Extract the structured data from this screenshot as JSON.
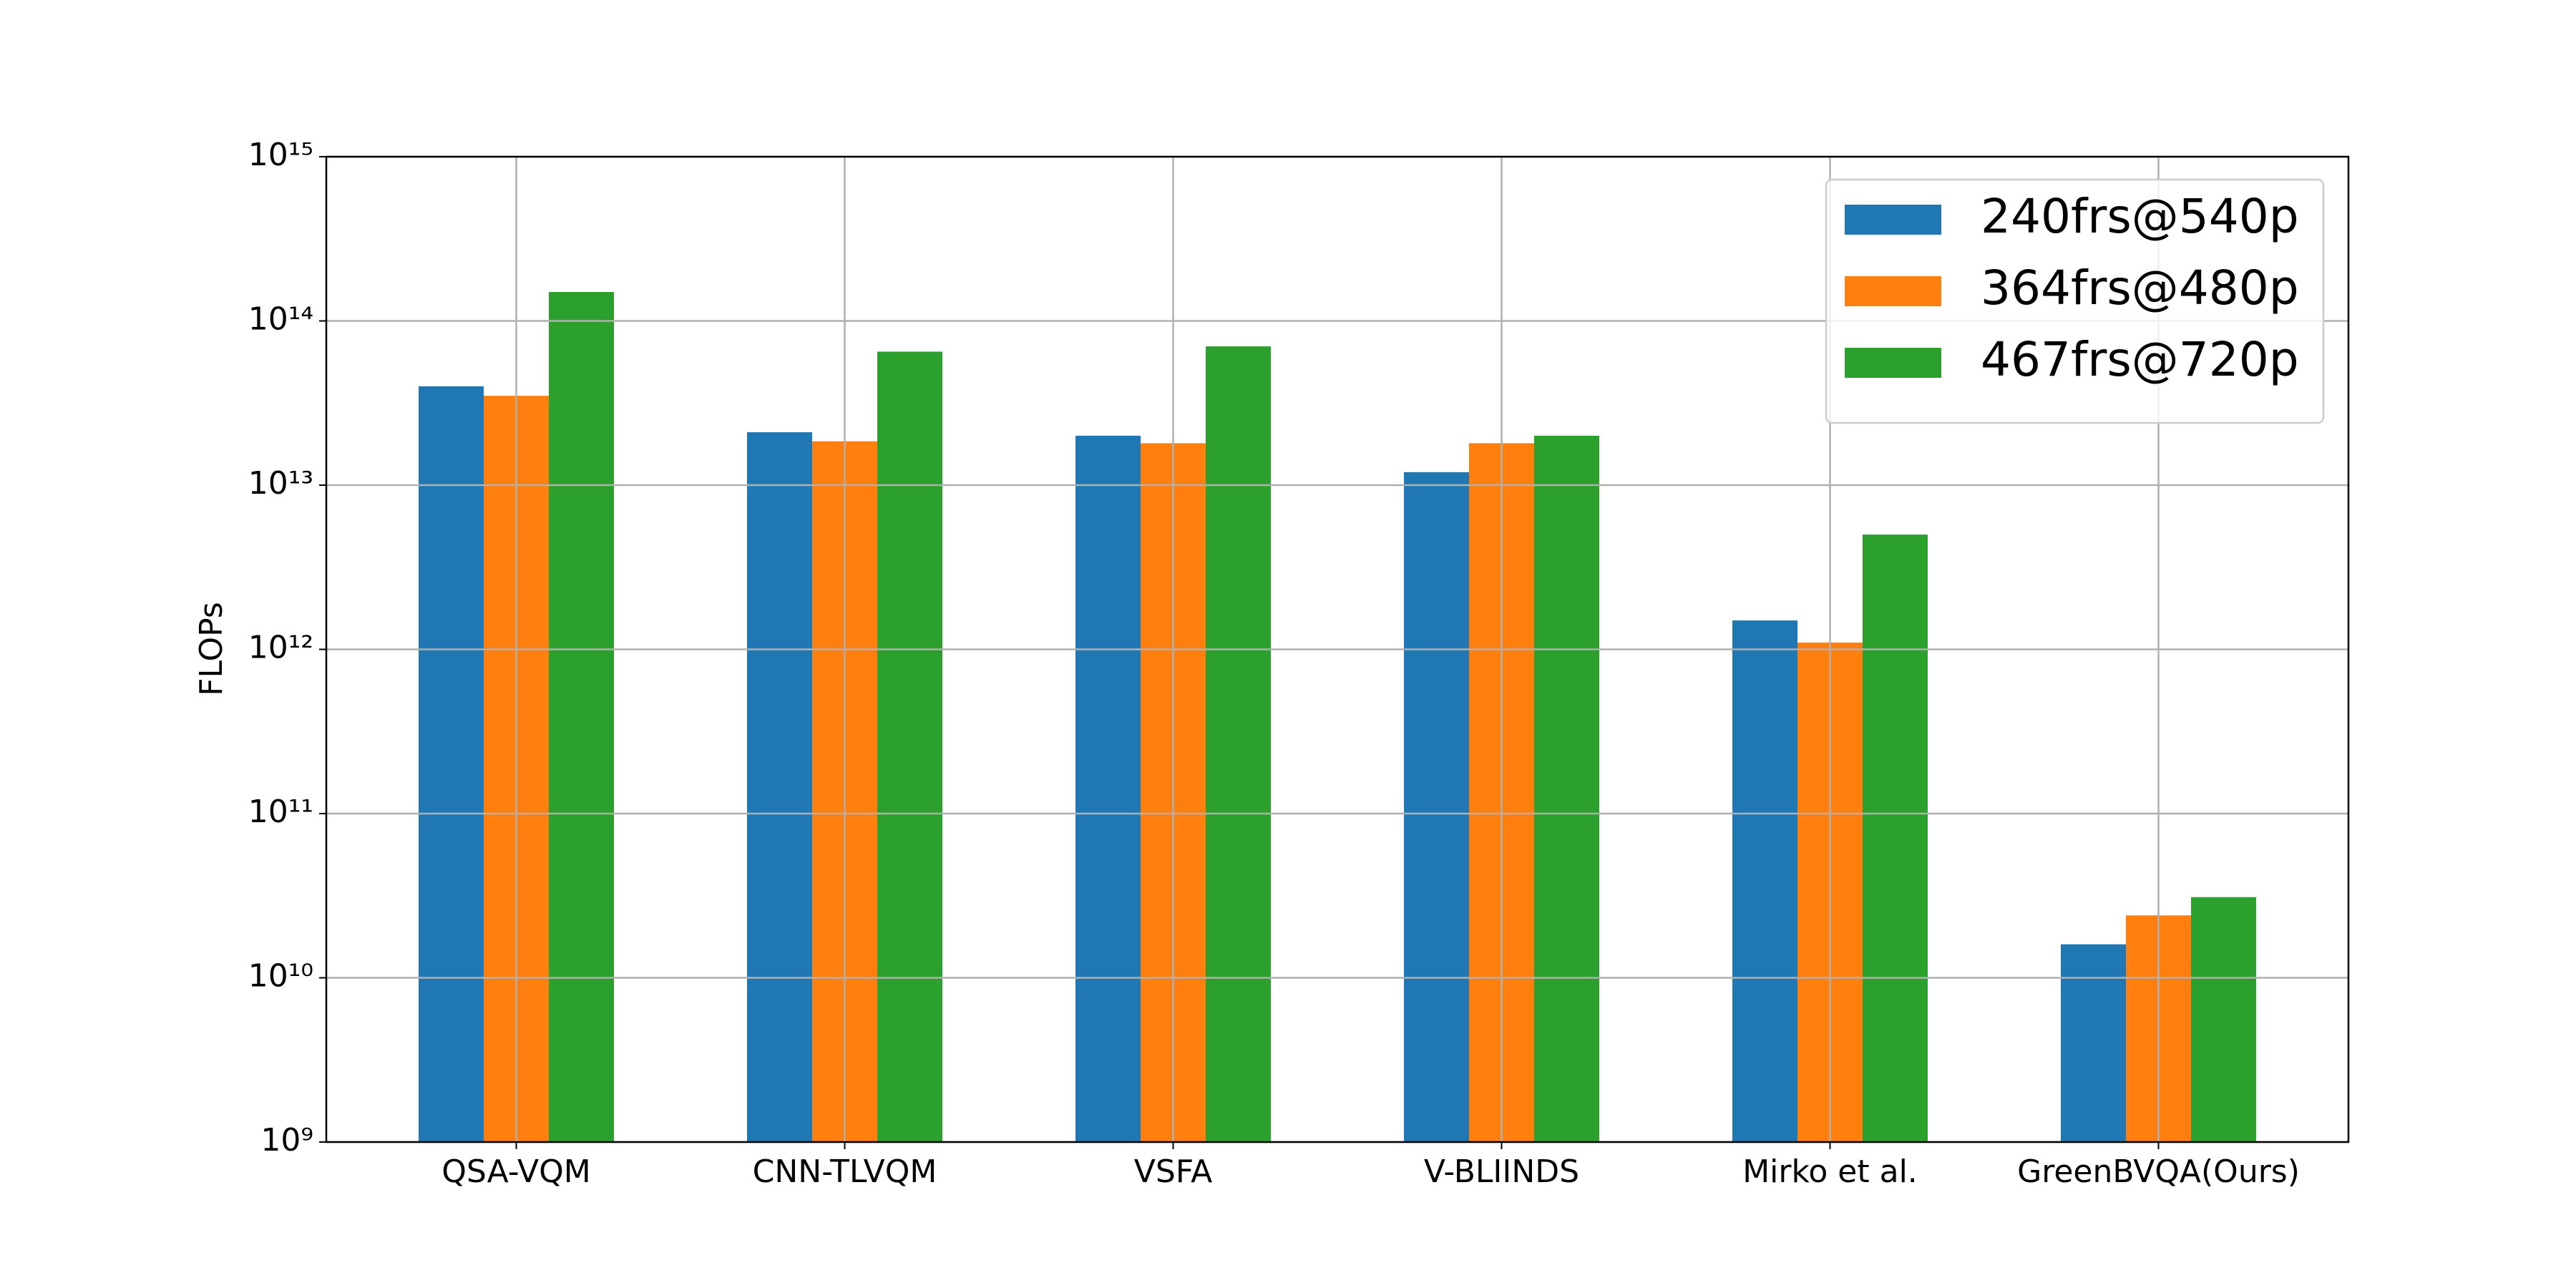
{
  "chart_data": {
    "type": "bar",
    "y_label": "FLOPs",
    "log_scale": true,
    "grid": true,
    "legend_position": "upper right",
    "categories": [
      "QSA-VQM",
      "CNN-TLVQM",
      "VSFA",
      "V-BLIINDS",
      "Mirko et al.",
      "GreenBVQA(Ours)"
    ],
    "series": [
      {
        "name": "240frs@540p",
        "color": "#1f77b4",
        "values": [
          40000000000000,
          21000000000000,
          20000000000000,
          12000000000000,
          1500000000000,
          16000000000
        ]
      },
      {
        "name": "364frs@480p",
        "color": "#ff7f0e",
        "values": [
          35000000000000,
          18500000000000,
          18000000000000,
          18000000000000,
          1100000000000,
          24000000000
        ]
      },
      {
        "name": "467frs@720p",
        "color": "#2ca02c",
        "values": [
          150000000000000,
          65000000000000,
          70000000000000,
          20000000000000,
          5000000000000,
          31000000000
        ]
      }
    ],
    "ylim": [
      1000000000,
      1000000000000000
    ],
    "yticks": [
      {
        "value": 1000000000,
        "label": "10⁹"
      },
      {
        "value": 10000000000,
        "label": "10¹⁰"
      },
      {
        "value": 100000000000,
        "label": "10¹¹"
      },
      {
        "value": 1000000000000,
        "label": "10¹²"
      },
      {
        "value": 10000000000000,
        "label": "10¹³"
      },
      {
        "value": 100000000000000,
        "label": "10¹⁴"
      },
      {
        "value": 1000000000000000,
        "label": "10¹⁵"
      }
    ]
  }
}
